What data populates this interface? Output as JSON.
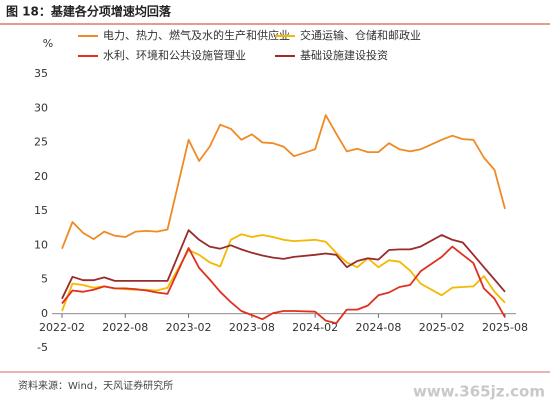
{
  "chart_data": {
    "type": "line",
    "title": "图 18：基建各分项增速均回落",
    "y_label": "%",
    "source": "资料来源：Wind，天风证券研究所",
    "watermark": "www.365jz.com",
    "x": [
      "2022-02",
      "2022-03",
      "2022-04",
      "2022-05",
      "2022-06",
      "2022-07",
      "2022-08",
      "2022-09",
      "2022-10",
      "2022-11",
      "2022-12",
      "2023-02",
      "2023-03",
      "2023-04",
      "2023-05",
      "2023-06",
      "2023-07",
      "2023-08",
      "2023-09",
      "2023-10",
      "2023-11",
      "2023-12",
      "2024-02",
      "2024-03",
      "2024-04",
      "2024-05",
      "2024-06",
      "2024-07",
      "2024-08",
      "2024-09",
      "2024-10",
      "2024-11",
      "2024-12",
      "2025-02",
      "2025-03",
      "2025-04",
      "2025-05",
      "2025-06",
      "2025-07",
      "2025-08"
    ],
    "xticks": [
      "2022-02",
      "2022-08",
      "2023-02",
      "2023-08",
      "2024-02",
      "2024-08",
      "2025-02",
      "2025-08"
    ],
    "ylim": [
      -5,
      35
    ],
    "yticks": [
      -5,
      0,
      5,
      10,
      15,
      20,
      25,
      30,
      35
    ],
    "grid": false,
    "series": [
      {
        "name": "电力、热力、燃气及水的生产和供应业",
        "color": "#f08a24",
        "values": [
          9.5,
          13.4,
          11.8,
          10.9,
          12.0,
          11.4,
          11.2,
          12.0,
          12.1,
          12.0,
          12.3,
          25.4,
          22.3,
          24.4,
          27.6,
          27.0,
          25.4,
          26.2,
          25.0,
          24.9,
          24.4,
          23.0,
          24.0,
          29.0,
          26.3,
          23.7,
          24.1,
          23.6,
          23.6,
          24.9,
          24.0,
          23.7,
          24.0,
          25.4,
          26.0,
          25.5,
          25.4,
          22.8,
          21.0,
          15.3
        ]
      },
      {
        "name": "交通运输、仓储和邮政业",
        "color": "#f5b800",
        "values": [
          0.4,
          4.4,
          4.2,
          3.8,
          4.0,
          3.7,
          3.6,
          3.5,
          3.5,
          3.4,
          3.8,
          9.3,
          8.6,
          7.5,
          6.9,
          10.8,
          11.6,
          11.2,
          11.5,
          11.2,
          10.8,
          10.6,
          10.8,
          10.5,
          8.9,
          7.5,
          6.8,
          8.1,
          6.8,
          7.8,
          7.6,
          6.3,
          4.4,
          2.7,
          3.8,
          3.9,
          4.0,
          5.5,
          3.2,
          1.6
        ]
      },
      {
        "name": "水利、环境和公共设施管理业",
        "color": "#e03020",
        "values": [
          1.5,
          3.4,
          3.2,
          3.5,
          4.0,
          3.7,
          3.7,
          3.6,
          3.4,
          3.1,
          2.9,
          9.6,
          6.7,
          5.0,
          3.2,
          1.7,
          0.4,
          -0.2,
          -0.8,
          0.1,
          0.4,
          0.4,
          0.3,
          -1.0,
          -1.4,
          0.6,
          0.6,
          1.2,
          2.7,
          3.1,
          3.9,
          4.2,
          6.2,
          8.3,
          9.8,
          8.6,
          7.4,
          3.7,
          2.2,
          -0.5
        ]
      },
      {
        "name": "基础设施建设投资",
        "color": "#9b2a2a",
        "values": [
          2.2,
          5.4,
          4.9,
          4.9,
          5.3,
          4.8,
          4.8,
          4.8,
          4.8,
          4.8,
          4.8,
          12.2,
          10.8,
          9.8,
          9.5,
          10.0,
          9.4,
          8.9,
          8.5,
          8.2,
          8.0,
          8.3,
          8.6,
          8.8,
          8.6,
          6.8,
          7.7,
          8.1,
          7.9,
          9.3,
          9.4,
          9.4,
          9.8,
          11.5,
          10.8,
          10.4,
          8.6,
          6.8,
          5.0,
          3.2
        ]
      }
    ]
  }
}
